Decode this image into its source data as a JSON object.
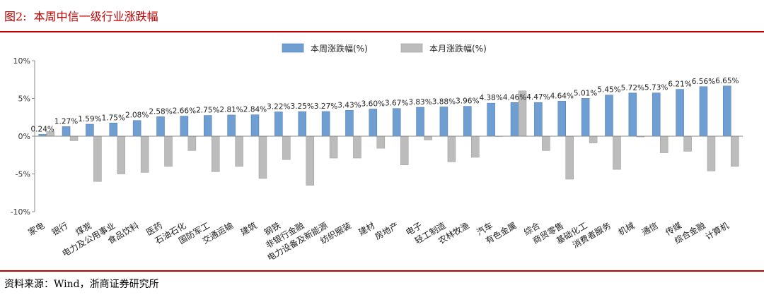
{
  "header": {
    "figure_label": "图2:",
    "title": "本周中信一级行业涨跌幅"
  },
  "footer": {
    "source": "资料来源：Wind，浙商证券研究所"
  },
  "colors": {
    "weekly": "#6f9ed2",
    "monthly": "#bcbcbc",
    "accent": "#c00000"
  },
  "chart_data": {
    "type": "bar",
    "categories": [
      "家电",
      "银行",
      "煤炭",
      "电力及公用事业",
      "食品饮料",
      "医药",
      "石油石化",
      "国防军工",
      "交通运输",
      "建筑",
      "钢铁",
      "非银行金融",
      "电力设备及新能源",
      "纺织服装",
      "建材",
      "房地产",
      "电子",
      "轻工制造",
      "农林牧渔",
      "汽车",
      "有色金属",
      "综合",
      "商贸零售",
      "基础化工",
      "消费者服务",
      "机械",
      "通信",
      "传媒",
      "综合金融",
      "计算机"
    ],
    "series": [
      {
        "name": "本周涨跌幅(%)",
        "values": [
          0.24,
          1.27,
          1.59,
          1.75,
          2.08,
          2.58,
          2.66,
          2.75,
          2.81,
          2.84,
          3.22,
          3.25,
          3.27,
          3.43,
          3.6,
          3.67,
          3.83,
          3.88,
          3.96,
          4.38,
          4.46,
          4.47,
          4.64,
          5.01,
          5.45,
          5.72,
          5.73,
          6.21,
          6.56,
          6.65
        ],
        "labels": [
          "0.24%",
          "1.27%",
          "1.59%",
          "1.75%",
          "2.08%",
          "2.58%",
          "2.66%",
          "2.75%",
          "2.81%",
          "2.84%",
          "3.22%",
          "3.25%",
          "3.27%",
          "3.43%",
          "3.60%",
          "3.67%",
          "3.83%",
          "3.88%",
          "3.96%",
          "4.38%",
          "4.46%",
          "4.47%",
          "4.64%",
          "5.01%",
          "5.45%",
          "5.72%",
          "5.73%",
          "6.21%",
          "6.56%",
          "6.65%"
        ]
      },
      {
        "name": "本月涨跌幅(%)",
        "values": [
          0.6,
          -0.6,
          -6.0,
          -5.0,
          -4.8,
          -4.0,
          -1.9,
          -4.7,
          -4.0,
          -5.6,
          -3.1,
          -6.5,
          -2.9,
          -2.9,
          -1.6,
          -3.8,
          -0.5,
          -3.4,
          -2.8,
          0.0,
          6.0,
          -1.9,
          -5.7,
          -0.9,
          -4.4,
          -0.1,
          -2.2,
          -2.0,
          -4.6,
          -4.0
        ]
      }
    ],
    "yticks": [
      "-10%",
      "-5%",
      "0%",
      "5%",
      "10%"
    ],
    "ylim": [
      -10,
      10
    ],
    "legend": "top-center",
    "grid": false
  }
}
